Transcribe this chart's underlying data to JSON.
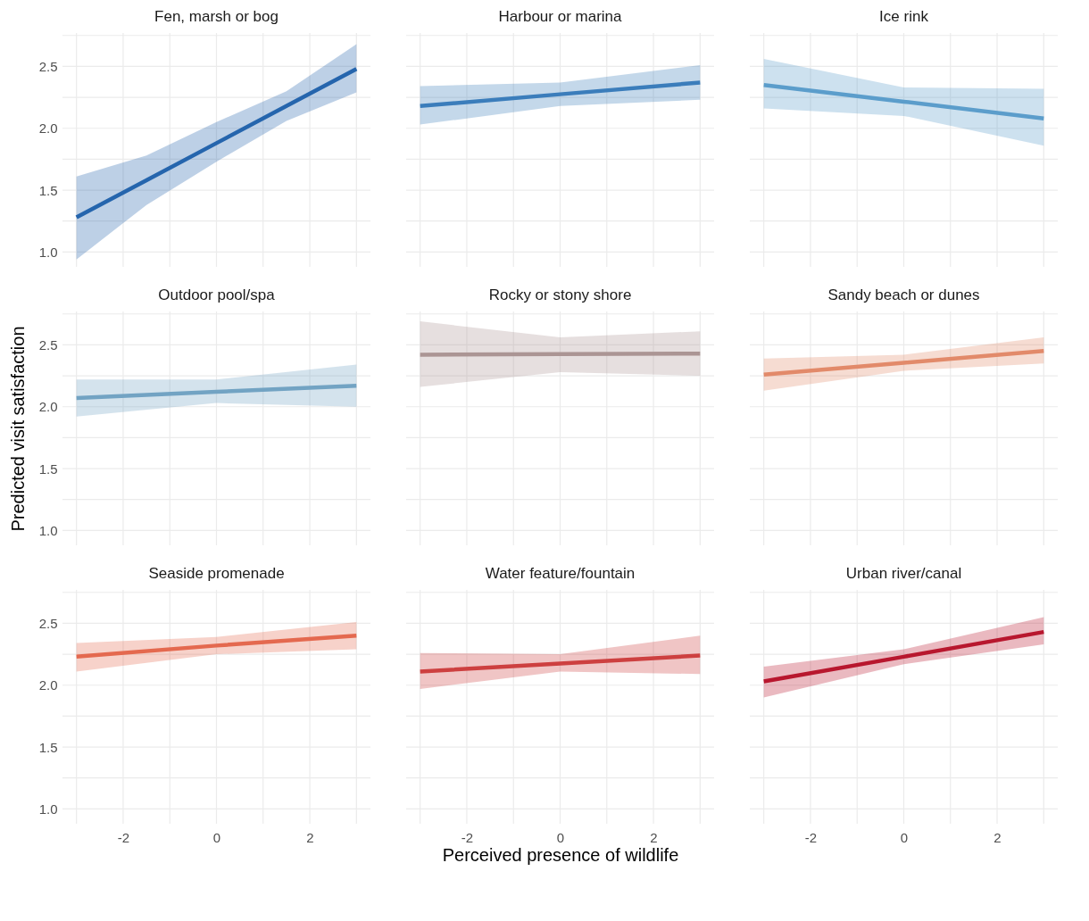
{
  "chart_data": [
    {
      "type": "line",
      "title": "Fen, marsh or bog",
      "x": [
        -3,
        -1.5,
        0,
        1.5,
        3
      ],
      "xlim": [
        -3.3,
        3.3
      ],
      "ylim": [
        0.88,
        2.77
      ],
      "xticks": [
        {
          "value": -3,
          "label": null
        },
        -2,
        {
          "value": -1,
          "label": null
        },
        0,
        {
          "value": 1,
          "label": null
        },
        2,
        {
          "value": 3,
          "label": null
        }
      ],
      "yticks": [
        {
          "value": 1,
          "label": "1.0"
        },
        {
          "value": 1.25,
          "label": null
        },
        {
          "value": 1.5,
          "label": "1.5"
        },
        {
          "value": 1.75,
          "label": null
        },
        {
          "value": 2,
          "label": "2.0"
        },
        {
          "value": 2.25,
          "label": null
        },
        {
          "value": 2.5,
          "label": "2.5"
        },
        {
          "value": 2.75,
          "label": null
        }
      ],
      "grid": true,
      "tick_labels": "y",
      "series": [
        {
          "color": "#2565ad",
          "values": [
            1.28,
            1.58,
            1.88,
            2.18,
            2.48
          ],
          "lower": [
            0.94,
            1.38,
            1.73,
            2.06,
            2.29
          ],
          "upper": [
            1.61,
            1.78,
            2.05,
            2.3,
            2.68
          ]
        }
      ]
    },
    {
      "type": "line",
      "title": "Harbour or marina",
      "x": [
        -3,
        0,
        3
      ],
      "xlim": [
        -3.3,
        3.3
      ],
      "ylim": [
        0.88,
        2.77
      ],
      "xticks": [
        {
          "value": -3,
          "label": null
        },
        -2,
        {
          "value": -1,
          "label": null
        },
        0,
        {
          "value": 1,
          "label": null
        },
        2,
        {
          "value": 3,
          "label": null
        }
      ],
      "yticks": [
        {
          "value": 1,
          "label": null
        },
        {
          "value": 1.25,
          "label": null
        },
        {
          "value": 1.5,
          "label": null
        },
        {
          "value": 1.75,
          "label": null
        },
        {
          "value": 2,
          "label": null
        },
        {
          "value": 2.25,
          "label": null
        },
        {
          "value": 2.5,
          "label": null
        },
        {
          "value": 2.75,
          "label": null
        }
      ],
      "grid": true,
      "tick_labels": false,
      "series": [
        {
          "color": "#3b7dbb",
          "values": [
            2.18,
            2.275,
            2.37
          ],
          "lower": [
            2.03,
            2.18,
            2.23
          ],
          "upper": [
            2.34,
            2.37,
            2.51
          ]
        }
      ]
    },
    {
      "type": "line",
      "title": "Ice rink",
      "x": [
        -3,
        0,
        3
      ],
      "xlim": [
        -3.3,
        3.3
      ],
      "ylim": [
        0.88,
        2.77
      ],
      "xticks": [
        {
          "value": -3,
          "label": null
        },
        -2,
        {
          "value": -1,
          "label": null
        },
        0,
        {
          "value": 1,
          "label": null
        },
        2,
        {
          "value": 3,
          "label": null
        }
      ],
      "yticks": [
        {
          "value": 1,
          "label": null
        },
        {
          "value": 1.25,
          "label": null
        },
        {
          "value": 1.5,
          "label": null
        },
        {
          "value": 1.75,
          "label": null
        },
        {
          "value": 2,
          "label": null
        },
        {
          "value": 2.25,
          "label": null
        },
        {
          "value": 2.5,
          "label": null
        },
        {
          "value": 2.75,
          "label": null
        }
      ],
      "grid": true,
      "tick_labels": false,
      "series": [
        {
          "color": "#5b9dcb",
          "values": [
            2.35,
            2.215,
            2.08
          ],
          "lower": [
            2.16,
            2.1,
            1.86
          ],
          "upper": [
            2.56,
            2.33,
            2.32
          ]
        }
      ]
    },
    {
      "type": "line",
      "title": "Outdoor pool/spa",
      "ylabel": "Predicted visit satisfaction",
      "x": [
        -3,
        0,
        3
      ],
      "xlim": [
        -3.3,
        3.3
      ],
      "ylim": [
        0.88,
        2.77
      ],
      "xticks": [
        {
          "value": -3,
          "label": null
        },
        -2,
        {
          "value": -1,
          "label": null
        },
        0,
        {
          "value": 1,
          "label": null
        },
        2,
        {
          "value": 3,
          "label": null
        }
      ],
      "yticks": [
        {
          "value": 1,
          "label": "1.0"
        },
        {
          "value": 1.25,
          "label": null
        },
        {
          "value": 1.5,
          "label": "1.5"
        },
        {
          "value": 1.75,
          "label": null
        },
        {
          "value": 2,
          "label": "2.0"
        },
        {
          "value": 2.25,
          "label": null
        },
        {
          "value": 2.5,
          "label": "2.5"
        },
        {
          "value": 2.75,
          "label": null
        }
      ],
      "grid": true,
      "tick_labels": "y",
      "series": [
        {
          "color": "#72a3c3",
          "values": [
            2.07,
            2.12,
            2.17
          ],
          "lower": [
            1.92,
            2.03,
            2.0
          ],
          "upper": [
            2.22,
            2.22,
            2.34
          ]
        }
      ]
    },
    {
      "type": "line",
      "title": "Rocky or stony shore",
      "x": [
        -3,
        0,
        3
      ],
      "xlim": [
        -3.3,
        3.3
      ],
      "ylim": [
        0.88,
        2.77
      ],
      "xticks": [
        {
          "value": -3,
          "label": null
        },
        -2,
        {
          "value": -1,
          "label": null
        },
        0,
        {
          "value": 1,
          "label": null
        },
        2,
        {
          "value": 3,
          "label": null
        }
      ],
      "yticks": [
        {
          "value": 1,
          "label": null
        },
        {
          "value": 1.25,
          "label": null
        },
        {
          "value": 1.5,
          "label": null
        },
        {
          "value": 1.75,
          "label": null
        },
        {
          "value": 2,
          "label": null
        },
        {
          "value": 2.25,
          "label": null
        },
        {
          "value": 2.5,
          "label": null
        },
        {
          "value": 2.75,
          "label": null
        }
      ],
      "grid": true,
      "tick_labels": false,
      "series": [
        {
          "color": "#ab9594",
          "values": [
            2.42,
            2.425,
            2.43
          ],
          "lower": [
            2.16,
            2.28,
            2.25
          ],
          "upper": [
            2.69,
            2.56,
            2.61
          ]
        }
      ]
    },
    {
      "type": "line",
      "title": "Sandy beach or dunes",
      "x": [
        -3,
        0,
        3
      ],
      "xlim": [
        -3.3,
        3.3
      ],
      "ylim": [
        0.88,
        2.77
      ],
      "xticks": [
        {
          "value": -3,
          "label": null
        },
        -2,
        {
          "value": -1,
          "label": null
        },
        0,
        {
          "value": 1,
          "label": null
        },
        2,
        {
          "value": 3,
          "label": null
        }
      ],
      "yticks": [
        {
          "value": 1,
          "label": null
        },
        {
          "value": 1.25,
          "label": null
        },
        {
          "value": 1.5,
          "label": null
        },
        {
          "value": 1.75,
          "label": null
        },
        {
          "value": 2,
          "label": null
        },
        {
          "value": 2.25,
          "label": null
        },
        {
          "value": 2.5,
          "label": null
        },
        {
          "value": 2.75,
          "label": null
        }
      ],
      "grid": true,
      "tick_labels": false,
      "series": [
        {
          "color": "#e28a6a",
          "values": [
            2.26,
            2.355,
            2.45
          ],
          "lower": [
            2.13,
            2.29,
            2.35
          ],
          "upper": [
            2.39,
            2.42,
            2.56
          ]
        }
      ]
    },
    {
      "type": "line",
      "title": "Seaside promenade",
      "x": [
        -3,
        0,
        3
      ],
      "xlim": [
        -3.3,
        3.3
      ],
      "ylim": [
        0.88,
        2.77
      ],
      "xticks": [
        {
          "value": -3,
          "label": null
        },
        -2,
        {
          "value": -1,
          "label": null
        },
        0,
        {
          "value": 1,
          "label": null
        },
        2,
        {
          "value": 3,
          "label": null
        }
      ],
      "yticks": [
        {
          "value": 1,
          "label": "1.0"
        },
        {
          "value": 1.25,
          "label": null
        },
        {
          "value": 1.5,
          "label": "1.5"
        },
        {
          "value": 1.75,
          "label": null
        },
        {
          "value": 2,
          "label": "2.0"
        },
        {
          "value": 2.25,
          "label": null
        },
        {
          "value": 2.5,
          "label": "2.5"
        },
        {
          "value": 2.75,
          "label": null
        }
      ],
      "grid": true,
      "series": [
        {
          "color": "#e4694f",
          "values": [
            2.23,
            2.32,
            2.4
          ],
          "lower": [
            2.11,
            2.25,
            2.29
          ],
          "upper": [
            2.34,
            2.39,
            2.51
          ]
        }
      ]
    },
    {
      "type": "line",
      "title": "Water feature/fountain",
      "xlabel": "Perceived presence of wildlife",
      "x": [
        -3,
        0,
        3
      ],
      "xlim": [
        -3.3,
        3.3
      ],
      "ylim": [
        0.88,
        2.77
      ],
      "xticks": [
        {
          "value": -3,
          "label": null
        },
        -2,
        {
          "value": -1,
          "label": null
        },
        0,
        {
          "value": 1,
          "label": null
        },
        2,
        {
          "value": 3,
          "label": null
        }
      ],
      "yticks": [
        {
          "value": 1,
          "label": null
        },
        {
          "value": 1.25,
          "label": null
        },
        {
          "value": 1.5,
          "label": null
        },
        {
          "value": 1.75,
          "label": null
        },
        {
          "value": 2,
          "label": null
        },
        {
          "value": 2.25,
          "label": null
        },
        {
          "value": 2.5,
          "label": null
        },
        {
          "value": 2.75,
          "label": null
        }
      ],
      "grid": true,
      "tick_labels": "x",
      "series": [
        {
          "color": "#cd4040",
          "values": [
            2.11,
            2.175,
            2.24
          ],
          "lower": [
            1.97,
            2.11,
            2.09
          ],
          "upper": [
            2.26,
            2.25,
            2.4
          ]
        }
      ]
    },
    {
      "type": "line",
      "title": "Urban river/canal",
      "x": [
        -3,
        0,
        3
      ],
      "xlim": [
        -3.3,
        3.3
      ],
      "ylim": [
        0.88,
        2.77
      ],
      "xticks": [
        {
          "value": -3,
          "label": null
        },
        -2,
        {
          "value": -1,
          "label": null
        },
        0,
        {
          "value": 1,
          "label": null
        },
        2,
        {
          "value": 3,
          "label": null
        }
      ],
      "yticks": [
        {
          "value": 1,
          "label": null
        },
        {
          "value": 1.25,
          "label": null
        },
        {
          "value": 1.5,
          "label": null
        },
        {
          "value": 1.75,
          "label": null
        },
        {
          "value": 2,
          "label": null
        },
        {
          "value": 2.25,
          "label": null
        },
        {
          "value": 2.5,
          "label": null
        },
        {
          "value": 2.75,
          "label": null
        }
      ],
      "grid": true,
      "tick_labels": "x",
      "series": [
        {
          "color": "#b8172e",
          "values": [
            2.03,
            2.23,
            2.43
          ],
          "lower": [
            1.9,
            2.17,
            2.33
          ],
          "upper": [
            2.15,
            2.29,
            2.55
          ]
        }
      ]
    }
  ]
}
